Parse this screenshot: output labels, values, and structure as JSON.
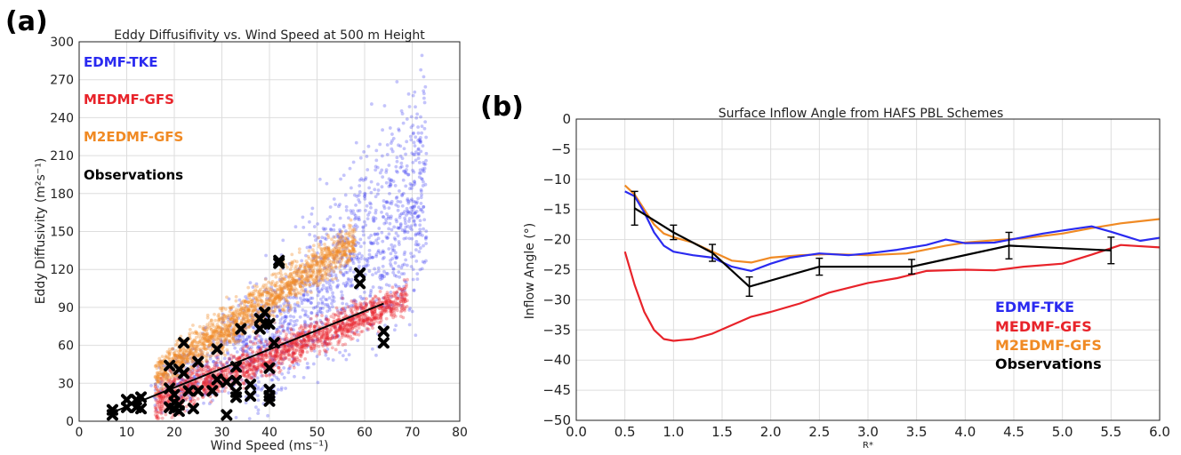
{
  "panels": {
    "a": {
      "label": "(a)"
    },
    "b": {
      "label": "(b)"
    }
  },
  "colors": {
    "edmf_tke": "#2a2af0",
    "medmf_gfs": "#e8232a",
    "m2edmf_gfs": "#f08a24",
    "observations": "#000000"
  },
  "chart_data": [
    {
      "type": "scatter",
      "title": "Eddy Diffusifivity vs. Wind Speed at 500 m Height",
      "xlabel": "Wind Speed (ms⁻¹)",
      "ylabel": "Eddy Diffusivity (m²s⁻¹)",
      "xlim": [
        0,
        80
      ],
      "ylim": [
        0,
        300
      ],
      "xticks": [
        0,
        10,
        20,
        30,
        40,
        50,
        60,
        70,
        80
      ],
      "yticks": [
        0,
        30,
        60,
        90,
        120,
        150,
        180,
        210,
        240,
        270,
        300
      ],
      "grid": true,
      "legend_position": "top-left",
      "series": [
        {
          "name": "EDMF-TKE",
          "color": "#2a2af0",
          "description_cloud": {
            "x_range": [
              15,
              75
            ],
            "y_range": [
              0,
              290
            ]
          }
        },
        {
          "name": "MEDMF-GFS",
          "color": "#e8232a",
          "description_cloud": {
            "x_range": [
              15,
              70
            ],
            "y_range": [
              0,
              105
            ]
          }
        },
        {
          "name": "M2EDMF-GFS",
          "color": "#f08a24",
          "description_cloud": {
            "x_range": [
              15,
              58
            ],
            "y_range": [
              0,
              150
            ]
          }
        },
        {
          "name": "Observations",
          "color": "#000000",
          "points": [
            [
              7,
              5
            ],
            [
              7,
              9
            ],
            [
              10,
              11
            ],
            [
              10,
              17
            ],
            [
              12,
              11
            ],
            [
              12,
              17
            ],
            [
              13,
              19
            ],
            [
              13,
              10
            ],
            [
              19,
              11
            ],
            [
              19,
              26
            ],
            [
              19,
              44
            ],
            [
              20,
              10
            ],
            [
              20,
              21
            ],
            [
              20,
              15
            ],
            [
              21,
              13
            ],
            [
              21,
              41
            ],
            [
              21,
              8
            ],
            [
              22,
              38
            ],
            [
              22,
              62
            ],
            [
              23,
              24
            ],
            [
              24,
              10
            ],
            [
              25,
              24
            ],
            [
              25,
              47
            ],
            [
              28,
              24
            ],
            [
              29,
              33
            ],
            [
              29,
              57
            ],
            [
              31,
              5
            ],
            [
              31,
              31
            ],
            [
              33,
              19
            ],
            [
              33,
              23
            ],
            [
              33,
              32
            ],
            [
              33,
              43
            ],
            [
              34,
              73
            ],
            [
              36,
              20
            ],
            [
              36,
              29
            ],
            [
              38,
              81
            ],
            [
              38,
              73
            ],
            [
              39,
              86
            ],
            [
              39,
              77
            ],
            [
              40,
              77
            ],
            [
              40,
              42
            ],
            [
              40,
              20
            ],
            [
              40,
              25
            ],
            [
              40,
              16
            ],
            [
              41,
              62
            ],
            [
              42,
              127
            ],
            [
              42,
              125
            ],
            [
              59,
              117
            ],
            [
              59,
              109
            ],
            [
              64,
              71
            ],
            [
              64,
              62
            ]
          ],
          "fit_line": {
            "x": [
              7,
              64
            ],
            "y": [
              7,
              93
            ]
          }
        }
      ]
    },
    {
      "type": "line",
      "title": "Surface Inflow Angle from HAFS PBL Schemes",
      "xlabel": "R*",
      "ylabel": "Inflow Angle (°)",
      "xlim": [
        0.0,
        6.0
      ],
      "ylim": [
        -50,
        0
      ],
      "xticks": [
        "0.0",
        "0.5",
        "1.0",
        "1.5",
        "2.0",
        "2.5",
        "3.0",
        "3.5",
        "4.0",
        "4.5",
        "5.0",
        "5.5",
        "6.0"
      ],
      "yticks": [
        "0",
        "−5",
        "−10",
        "−15",
        "−20",
        "−25",
        "−30",
        "−35",
        "−40",
        "−45",
        "−50"
      ],
      "grid": true,
      "legend_position": "lower-right",
      "series": [
        {
          "name": "EDMF-TKE",
          "color": "#2a2af0",
          "x": [
            0.5,
            0.6,
            0.7,
            0.8,
            0.9,
            1.0,
            1.2,
            1.4,
            1.6,
            1.8,
            2.0,
            2.2,
            2.5,
            2.8,
            3.0,
            3.3,
            3.6,
            3.8,
            4.0,
            4.3,
            4.6,
            4.8,
            5.0,
            5.3,
            5.5,
            5.8,
            6.0
          ],
          "y": [
            -12.0,
            -12.8,
            -15.5,
            -18.8,
            -21.0,
            -22.0,
            -22.6,
            -23.0,
            -24.5,
            -25.2,
            -24.0,
            -23.0,
            -22.3,
            -22.6,
            -22.3,
            -21.7,
            -20.9,
            -20.0,
            -20.6,
            -20.5,
            -19.6,
            -19.0,
            -18.5,
            -17.8,
            -18.7,
            -20.2,
            -19.7
          ]
        },
        {
          "name": "MEDMF-GFS",
          "color": "#e8232a",
          "x": [
            0.5,
            0.6,
            0.7,
            0.8,
            0.9,
            1.0,
            1.2,
            1.4,
            1.6,
            1.8,
            2.0,
            2.3,
            2.6,
            3.0,
            3.3,
            3.6,
            4.0,
            4.3,
            4.6,
            5.0,
            5.3,
            5.6,
            6.0
          ],
          "y": [
            -22.0,
            -27.5,
            -32.0,
            -35.0,
            -36.5,
            -36.8,
            -36.5,
            -35.6,
            -34.2,
            -32.8,
            -32.0,
            -30.6,
            -28.8,
            -27.2,
            -26.4,
            -25.2,
            -25.0,
            -25.1,
            -24.5,
            -24.0,
            -22.5,
            -20.9,
            -21.3
          ]
        },
        {
          "name": "M2EDMF-GFS",
          "color": "#f08a24",
          "x": [
            0.5,
            0.6,
            0.7,
            0.8,
            0.9,
            1.0,
            1.2,
            1.4,
            1.6,
            1.8,
            2.0,
            2.3,
            2.6,
            3.0,
            3.4,
            3.8,
            4.0,
            4.3,
            4.6,
            5.0,
            5.3,
            5.6,
            6.0
          ],
          "y": [
            -11.0,
            -12.5,
            -15.0,
            -17.5,
            -19.0,
            -19.6,
            -20.5,
            -22.0,
            -23.5,
            -23.8,
            -23.0,
            -22.6,
            -22.4,
            -22.6,
            -22.3,
            -21.0,
            -20.5,
            -20.1,
            -19.8,
            -19.0,
            -18.1,
            -17.3,
            -16.6
          ]
        },
        {
          "name": "Observations",
          "color": "#000000",
          "x": [
            0.6,
            1.0,
            1.4,
            1.78,
            2.5,
            3.45,
            4.45,
            5.5
          ],
          "y": [
            -14.8,
            -18.8,
            -22.2,
            -27.8,
            -24.5,
            -24.5,
            -21.0,
            -21.8
          ],
          "error": [
            2.8,
            1.2,
            1.4,
            1.6,
            1.4,
            1.2,
            2.2,
            2.2
          ]
        }
      ]
    }
  ]
}
